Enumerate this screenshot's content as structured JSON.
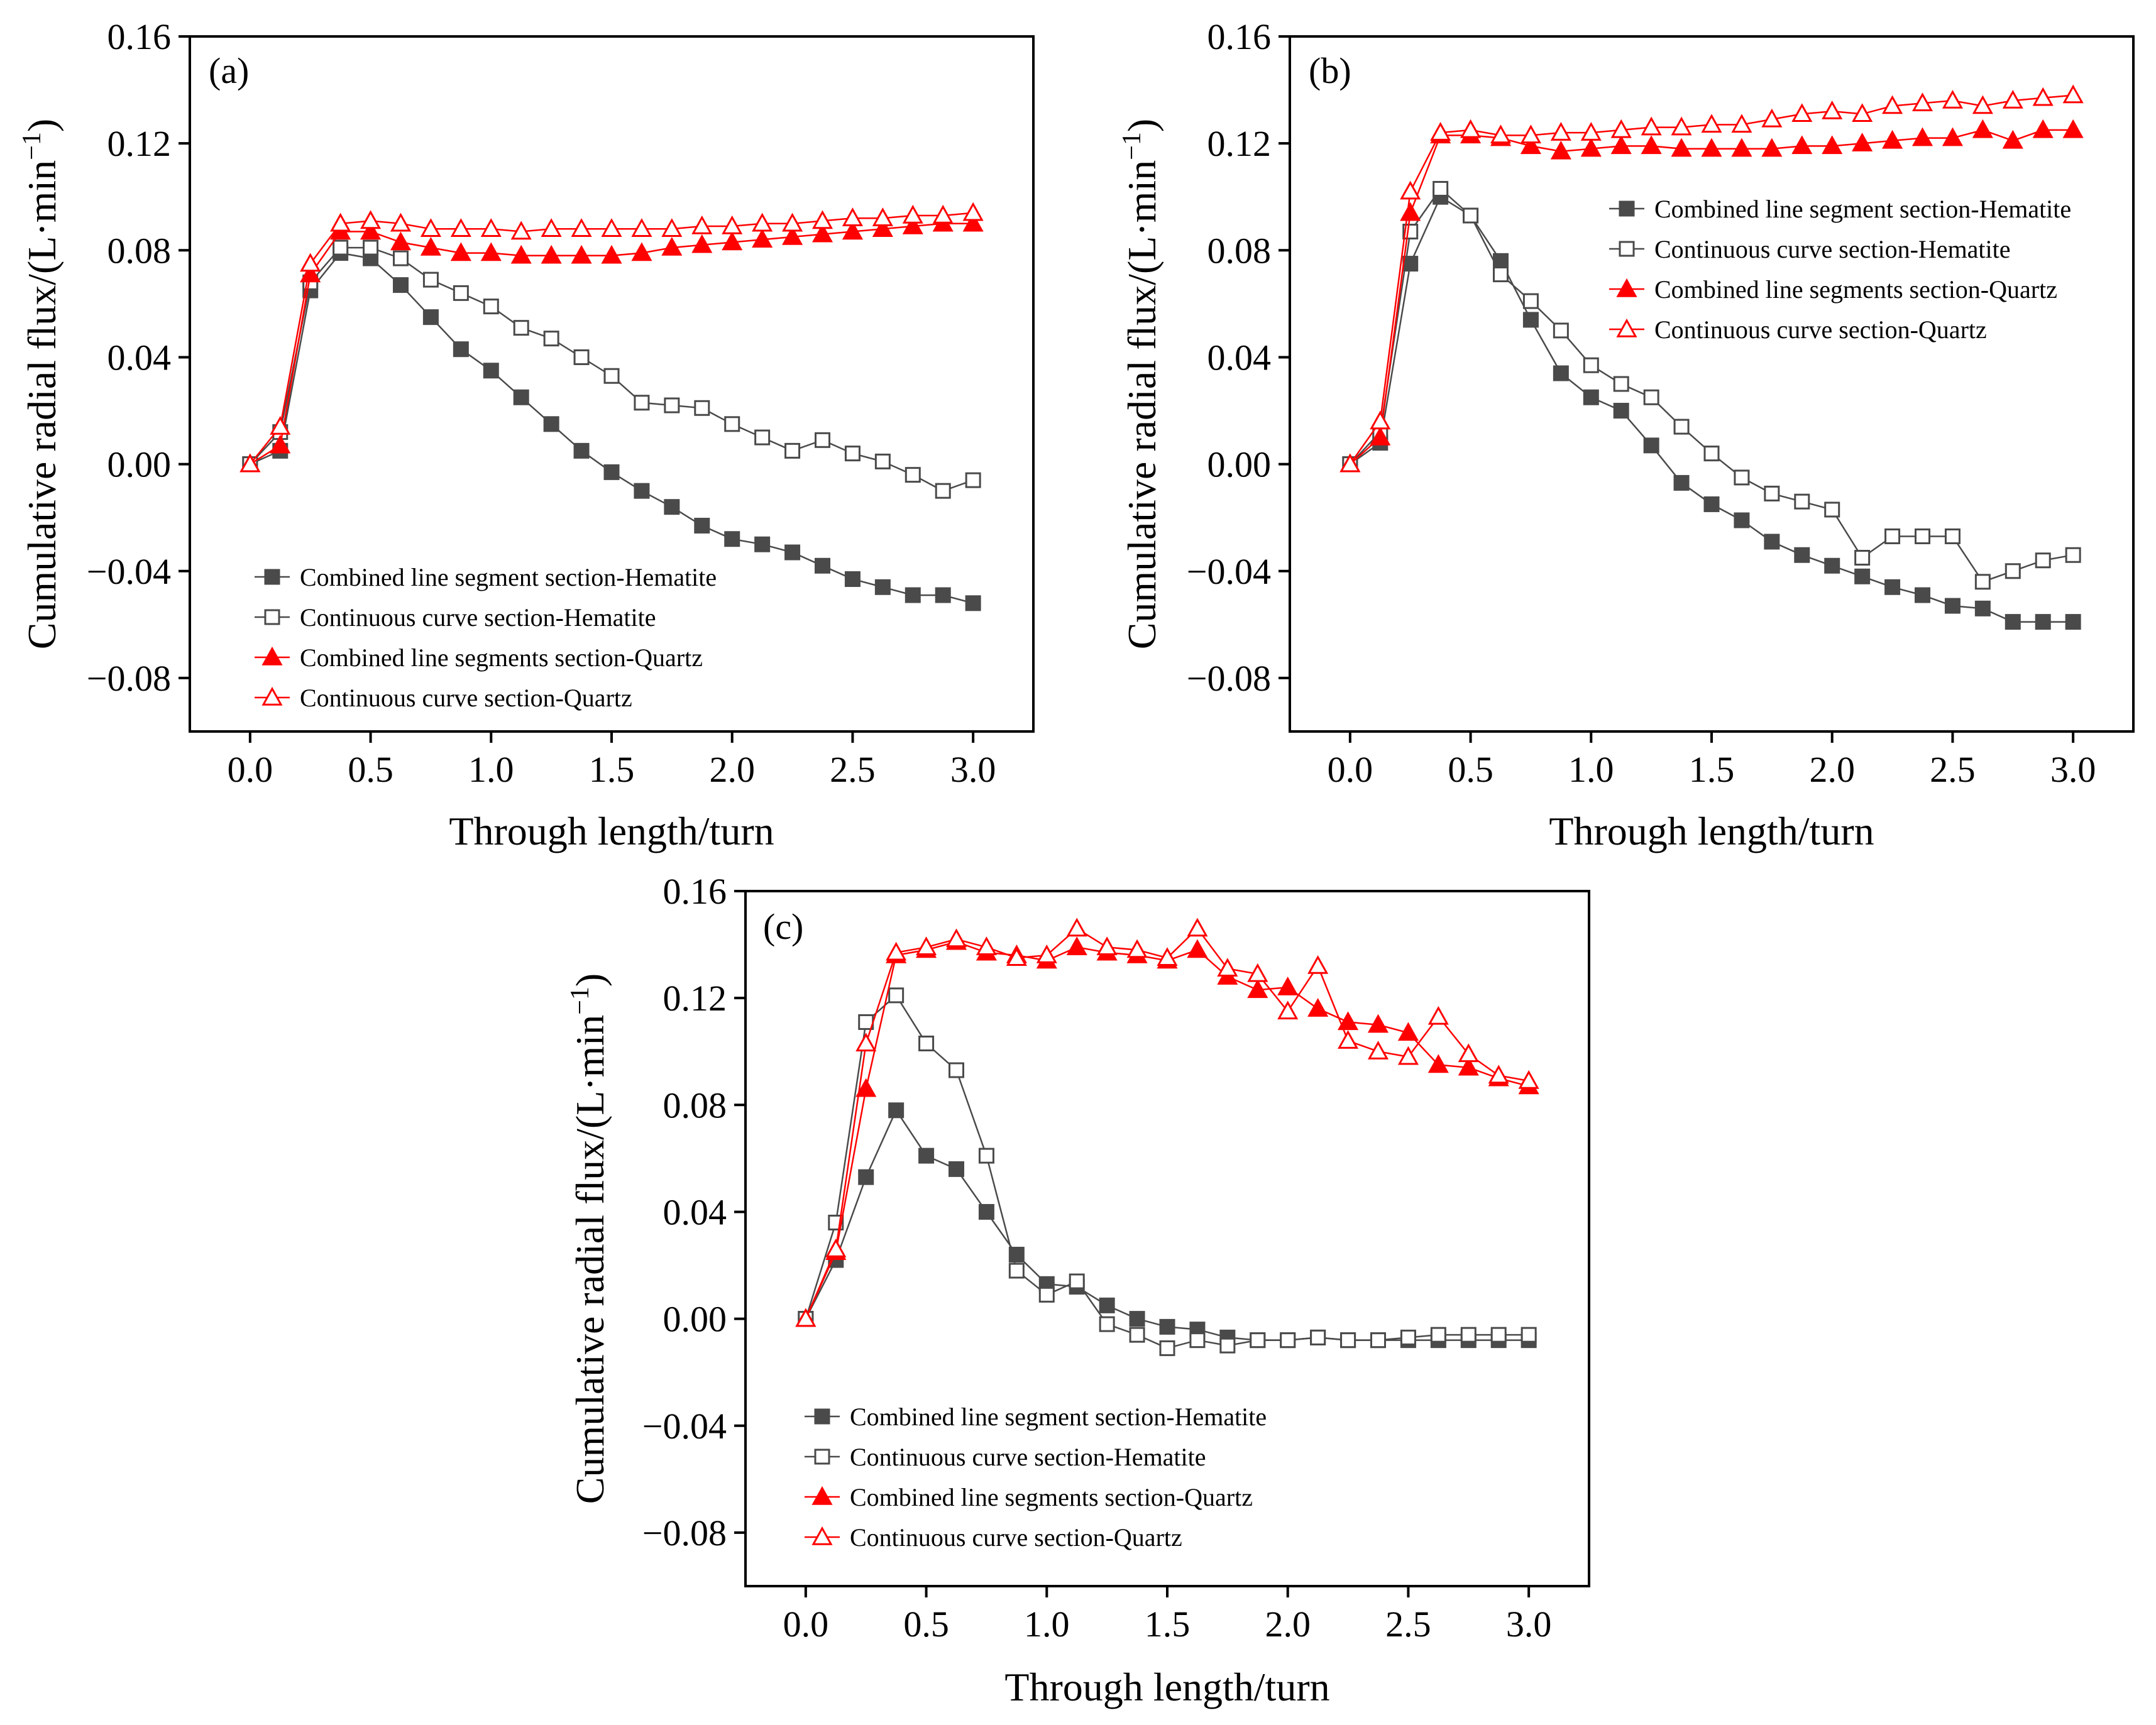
{
  "figure": {
    "xlabel": "Through length/turn",
    "ylabel": "Cumulative radial flux/(L·min",
    "ylabel_sup": "−1",
    "ylabel_close": ")"
  },
  "legend_entries": [
    {
      "label": "Combined line segment section-Hematite",
      "marker": "square-filled",
      "color": "#4a4a4a"
    },
    {
      "label": "Continuous curve section-Hematite",
      "marker": "square-open",
      "color": "#4a4a4a"
    },
    {
      "label": "Combined line segments section-Quartz",
      "marker": "triangle-filled",
      "color": "#ff0000"
    },
    {
      "label": "Continuous curve section-Quartz",
      "marker": "triangle-open",
      "color": "#ff0000"
    }
  ],
  "chart_data": [
    {
      "type": "line",
      "panel": "(a)",
      "xlabel": "Through length/turn",
      "ylabel": "Cumulative radial flux/(L·min−1)",
      "xlim": [
        -0.25,
        3.25
      ],
      "ylim": [
        -0.1,
        0.16
      ],
      "xticks": [
        "0.0",
        "0.5",
        "1.0",
        "1.5",
        "2.0",
        "2.5",
        "3.0"
      ],
      "yticks": [
        "0.16",
        "0.12",
        "0.08",
        "0.04",
        "0.00",
        "−0.04",
        "−0.08"
      ],
      "grid": false,
      "legend": "bottom-left",
      "x": [
        0,
        0.125,
        0.25,
        0.375,
        0.5,
        0.625,
        0.75,
        0.875,
        1.0,
        1.125,
        1.25,
        1.375,
        1.5,
        1.625,
        1.75,
        1.875,
        2.0,
        2.125,
        2.25,
        2.375,
        2.5,
        2.625,
        2.75,
        2.875,
        3.0
      ],
      "series": [
        {
          "name": "Combined line segment section-Hematite",
          "values": [
            0.0,
            0.005,
            0.065,
            0.079,
            0.077,
            0.067,
            0.055,
            0.043,
            0.035,
            0.025,
            0.015,
            0.005,
            -0.003,
            -0.01,
            -0.016,
            -0.023,
            -0.028,
            -0.03,
            -0.033,
            -0.038,
            -0.043,
            -0.046,
            -0.049,
            -0.049,
            -0.052
          ]
        },
        {
          "name": "Continuous curve section-Hematite",
          "values": [
            0.0,
            0.012,
            0.068,
            0.081,
            0.081,
            0.077,
            0.069,
            0.064,
            0.059,
            0.051,
            0.047,
            0.04,
            0.033,
            0.023,
            0.022,
            0.021,
            0.015,
            0.01,
            0.005,
            0.009,
            0.004,
            0.001,
            -0.004,
            -0.01,
            -0.006
          ]
        },
        {
          "name": "Combined line segments section-Quartz",
          "values": [
            0.0,
            0.007,
            0.071,
            0.087,
            0.087,
            0.083,
            0.081,
            0.079,
            0.079,
            0.078,
            0.078,
            0.078,
            0.078,
            0.079,
            0.081,
            0.082,
            0.083,
            0.084,
            0.085,
            0.086,
            0.087,
            0.088,
            0.089,
            0.09,
            0.09
          ]
        },
        {
          "name": "Continuous curve section-Quartz",
          "values": [
            0.0,
            0.014,
            0.075,
            0.09,
            0.091,
            0.09,
            0.088,
            0.088,
            0.088,
            0.087,
            0.088,
            0.088,
            0.088,
            0.088,
            0.088,
            0.089,
            0.089,
            0.09,
            0.09,
            0.091,
            0.092,
            0.092,
            0.093,
            0.093,
            0.094
          ]
        }
      ]
    },
    {
      "type": "line",
      "panel": "(b)",
      "xlabel": "Through length/turn",
      "ylabel": "Cumulative radial flux/(L·min−1)",
      "xlim": [
        -0.25,
        3.25
      ],
      "ylim": [
        -0.1,
        0.16
      ],
      "xticks": [
        "0.0",
        "0.5",
        "1.0",
        "1.5",
        "2.0",
        "2.5",
        "3.0"
      ],
      "yticks": [
        "0.16",
        "0.12",
        "0.08",
        "0.04",
        "0.00",
        "−0.04",
        "−0.08"
      ],
      "grid": false,
      "legend": "top-right",
      "x": [
        0,
        0.125,
        0.25,
        0.375,
        0.5,
        0.625,
        0.75,
        0.875,
        1.0,
        1.125,
        1.25,
        1.375,
        1.5,
        1.625,
        1.75,
        1.875,
        2.0,
        2.125,
        2.25,
        2.375,
        2.5,
        2.625,
        2.75,
        2.875,
        3.0
      ],
      "series": [
        {
          "name": "Combined line segment section-Hematite",
          "values": [
            0.0,
            0.008,
            0.075,
            0.1,
            0.093,
            0.076,
            0.054,
            0.034,
            0.025,
            0.02,
            0.007,
            -0.007,
            -0.015,
            -0.021,
            -0.029,
            -0.034,
            -0.038,
            -0.042,
            -0.046,
            -0.049,
            -0.053,
            -0.054,
            -0.059,
            -0.059,
            -0.059
          ]
        },
        {
          "name": "Continuous curve section-Hematite",
          "values": [
            0.0,
            0.012,
            0.087,
            0.103,
            0.093,
            0.071,
            0.061,
            0.05,
            0.037,
            0.03,
            0.025,
            0.014,
            0.004,
            -0.005,
            -0.011,
            -0.014,
            -0.017,
            -0.035,
            -0.027,
            -0.027,
            -0.027,
            -0.044,
            -0.04,
            -0.036,
            -0.034
          ]
        },
        {
          "name": "Combined line segments section-Quartz",
          "values": [
            0.0,
            0.01,
            0.094,
            0.123,
            0.123,
            0.122,
            0.119,
            0.117,
            0.118,
            0.119,
            0.119,
            0.118,
            0.118,
            0.118,
            0.118,
            0.119,
            0.119,
            0.12,
            0.121,
            0.122,
            0.122,
            0.125,
            0.121,
            0.125,
            0.125
          ]
        },
        {
          "name": "Continuous curve section-Quartz",
          "values": [
            0.0,
            0.016,
            0.102,
            0.124,
            0.125,
            0.123,
            0.123,
            0.124,
            0.124,
            0.125,
            0.126,
            0.126,
            0.127,
            0.127,
            0.129,
            0.131,
            0.132,
            0.131,
            0.134,
            0.135,
            0.136,
            0.134,
            0.136,
            0.137,
            0.138
          ]
        }
      ]
    },
    {
      "type": "line",
      "panel": "(c)",
      "xlabel": "Through length/turn",
      "ylabel": "Cumulative radial flux/(L·min−1)",
      "xlim": [
        -0.25,
        3.25
      ],
      "ylim": [
        -0.1,
        0.16
      ],
      "xticks": [
        "0.0",
        "0.5",
        "1.0",
        "1.5",
        "2.0",
        "2.5",
        "3.0"
      ],
      "yticks": [
        "0.16",
        "0.12",
        "0.08",
        "0.04",
        "0.00",
        "−0.04",
        "−0.08"
      ],
      "grid": false,
      "legend": "bottom-left",
      "x": [
        0,
        0.125,
        0.25,
        0.375,
        0.5,
        0.625,
        0.75,
        0.875,
        1.0,
        1.125,
        1.25,
        1.375,
        1.5,
        1.625,
        1.75,
        1.875,
        2.0,
        2.125,
        2.25,
        2.375,
        2.5,
        2.625,
        2.75,
        2.875,
        3.0
      ],
      "series": [
        {
          "name": "Combined line segment section-Hematite",
          "values": [
            0.0,
            0.022,
            0.053,
            0.078,
            0.061,
            0.056,
            0.04,
            0.024,
            0.013,
            0.012,
            0.005,
            0.0,
            -0.003,
            -0.004,
            -0.007,
            -0.008,
            -0.008,
            -0.007,
            -0.008,
            -0.008,
            -0.008,
            -0.008,
            -0.008,
            -0.008,
            -0.008
          ]
        },
        {
          "name": "Continuous curve section-Hematite",
          "values": [
            0.0,
            0.036,
            0.111,
            0.121,
            0.103,
            0.093,
            0.061,
            0.018,
            0.009,
            0.014,
            -0.002,
            -0.006,
            -0.011,
            -0.008,
            -0.01,
            -0.008,
            -0.008,
            -0.007,
            -0.008,
            -0.008,
            -0.007,
            -0.006,
            -0.006,
            -0.006,
            -0.006
          ]
        },
        {
          "name": "Combined line segments section-Quartz",
          "values": [
            0.0,
            0.025,
            0.086,
            0.136,
            0.138,
            0.141,
            0.137,
            0.136,
            0.134,
            0.139,
            0.137,
            0.136,
            0.134,
            0.138,
            0.128,
            0.123,
            0.124,
            0.116,
            0.111,
            0.11,
            0.107,
            0.095,
            0.094,
            0.09,
            0.087
          ]
        },
        {
          "name": "Continuous curve section-Quartz",
          "values": [
            0.0,
            0.026,
            0.103,
            0.137,
            0.139,
            0.142,
            0.139,
            0.135,
            0.136,
            0.146,
            0.139,
            0.138,
            0.135,
            0.146,
            0.131,
            0.129,
            0.115,
            0.132,
            0.104,
            0.1,
            0.098,
            0.113,
            0.099,
            0.091,
            0.089
          ]
        }
      ]
    }
  ]
}
